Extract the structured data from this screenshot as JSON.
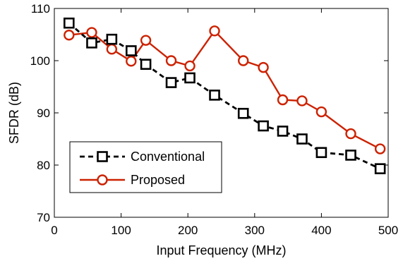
{
  "chart_data": {
    "type": "line",
    "xlabel": "Input Frequency (MHz)",
    "ylabel": "SFDR (dB)",
    "xlim": [
      0,
      500
    ],
    "ylim": [
      70,
      110
    ],
    "x_ticks": [
      "0",
      "100",
      "200",
      "300",
      "400",
      "500"
    ],
    "y_ticks": [
      "70",
      "80",
      "90",
      "100",
      "110"
    ],
    "grid": false,
    "legend_position": "bottom-left",
    "series": [
      {
        "name": "Conventional",
        "color": "#000000",
        "line_style": "dashed",
        "marker": "square",
        "x": [
          22,
          56,
          86,
          115,
          137,
          175,
          203,
          240,
          283,
          313,
          342,
          371,
          400,
          444,
          488
        ],
        "y": [
          107.2,
          103.4,
          104.1,
          101.9,
          99.3,
          95.8,
          96.7,
          93.4,
          89.9,
          87.5,
          86.5,
          85.0,
          82.4,
          81.9,
          79.3
        ]
      },
      {
        "name": "Proposed",
        "color": "#cc2200",
        "line_style": "solid",
        "marker": "circle",
        "x": [
          22,
          56,
          86,
          115,
          137,
          175,
          203,
          240,
          283,
          313,
          342,
          371,
          400,
          444,
          488
        ],
        "y": [
          104.9,
          105.4,
          102.2,
          99.9,
          103.9,
          100.0,
          99.0,
          105.7,
          100.0,
          98.7,
          92.5,
          92.3,
          90.2,
          86.0,
          83.1
        ]
      }
    ]
  }
}
